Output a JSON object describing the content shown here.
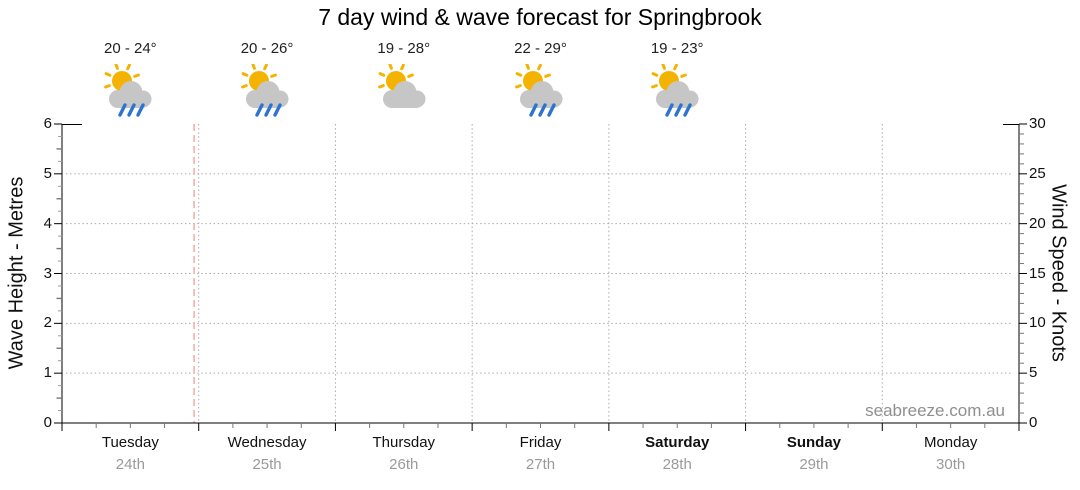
{
  "title": "7 day wind & wave forecast for Springbrook",
  "watermark": "seabreeze.com.au",
  "left_axis": {
    "title": "Wave Height - Metres",
    "min": 0,
    "max": 6,
    "major_step": 1,
    "labels": [
      "0",
      "1",
      "2",
      "3",
      "4",
      "5",
      "6"
    ]
  },
  "right_axis": {
    "title": "Wind Speed - Knots",
    "min": 0,
    "max": 30,
    "major_step": 5,
    "labels": [
      "0",
      "5",
      "10",
      "15",
      "20",
      "25",
      "30"
    ]
  },
  "days": [
    {
      "name": "Tuesday",
      "date": "24th",
      "temp": "20 - 24°",
      "icon": "sun-cloud-rain",
      "weekend": false
    },
    {
      "name": "Wednesday",
      "date": "25th",
      "temp": "20 - 26°",
      "icon": "sun-cloud-rain",
      "weekend": false
    },
    {
      "name": "Thursday",
      "date": "26th",
      "temp": "19 - 28°",
      "icon": "sun-cloud",
      "weekend": false
    },
    {
      "name": "Friday",
      "date": "27th",
      "temp": "22 - 29°",
      "icon": "sun-cloud-rain",
      "weekend": false
    },
    {
      "name": "Saturday",
      "date": "28th",
      "temp": "19 - 23°",
      "icon": "sun-cloud-rain",
      "weekend": true
    },
    {
      "name": "Sunday",
      "date": "29th",
      "temp": null,
      "icon": null,
      "weekend": true
    },
    {
      "name": "Monday",
      "date": "30th",
      "temp": null,
      "icon": null,
      "weekend": false
    }
  ],
  "now_fraction_of_week": 0.138,
  "colors": {
    "axis": "#000000",
    "grid": "#ababab",
    "minor_tick": "#777777",
    "quarter_tick": "#9b9b9b",
    "now_line": "#f5aeae",
    "sun": "#f5b301",
    "cloud": "#c6c6c6",
    "rain": "#2b74d4",
    "date_text": "#9a9a9a",
    "watermark_text": "#8f8f8f"
  },
  "chart_data": {
    "type": "line",
    "title": "7 day wind & wave forecast for Springbrook",
    "x_axis": {
      "categories": [
        "Tuesday 24th",
        "Wednesday 25th",
        "Thursday 26th",
        "Friday 27th",
        "Saturday 28th",
        "Sunday 29th",
        "Monday 30th"
      ],
      "minor_ticks_per_day": 4,
      "day_boundary_gridlines": true
    },
    "y_axis_left": {
      "label": "Wave Height - Metres",
      "range": [
        0,
        6
      ],
      "ticks": [
        0,
        1,
        2,
        3,
        4,
        5,
        6
      ],
      "gridlines_at": [
        1,
        2,
        3,
        4,
        5
      ]
    },
    "y_axis_right": {
      "label": "Wind Speed - Knots",
      "range": [
        0,
        30
      ],
      "ticks": [
        0,
        5,
        10,
        15,
        20,
        25,
        30
      ]
    },
    "series": [],
    "legend": "none",
    "grid": true,
    "now_marker_day_position": 0.97,
    "day_annotations": [
      {
        "day": "Tuesday",
        "temp_range": "20 - 24°",
        "condition": "partly-cloudy-showers"
      },
      {
        "day": "Wednesday",
        "temp_range": "20 - 26°",
        "condition": "partly-cloudy-showers"
      },
      {
        "day": "Thursday",
        "temp_range": "19 - 28°",
        "condition": "partly-cloudy"
      },
      {
        "day": "Friday",
        "temp_range": "22 - 29°",
        "condition": "partly-cloudy-showers"
      },
      {
        "day": "Saturday",
        "temp_range": "19 - 23°",
        "condition": "partly-cloudy-showers"
      }
    ]
  }
}
